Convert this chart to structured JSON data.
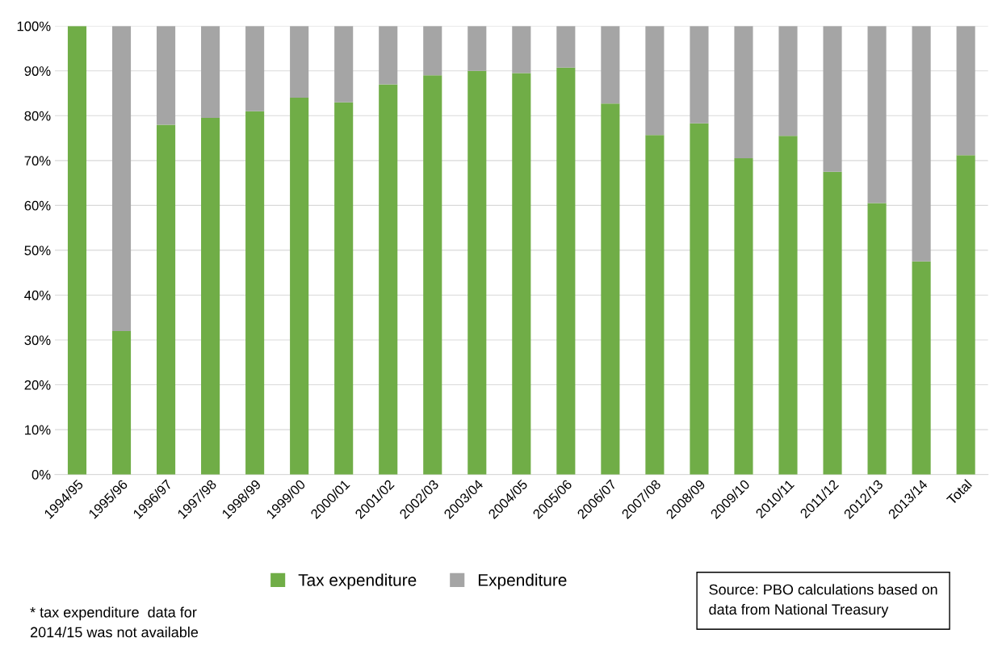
{
  "chart_data": {
    "type": "bar",
    "stacked": true,
    "categories": [
      "1994/95",
      "1995/96",
      "1996/97",
      "1997/98",
      "1998/99",
      "1999/00",
      "2000/01",
      "2001/02",
      "2002/03",
      "2003/04",
      "2004/05",
      "2005/06",
      "2006/07",
      "2007/08",
      "2008/09",
      "2009/10",
      "2010/11",
      "2011/12",
      "2012/13",
      "2013/14",
      "Total"
    ],
    "series": [
      {
        "name": "Tax expenditure",
        "color": "#70ad47",
        "values": [
          100,
          32,
          78,
          79.5,
          81,
          84,
          83,
          87,
          89,
          90,
          89.5,
          90.7,
          82.7,
          75.7,
          78.3,
          70.5,
          75.5,
          67.5,
          60.5,
          47.5,
          71.2
        ]
      },
      {
        "name": "Expenditure",
        "color": "#a5a5a5",
        "values": [
          0,
          68,
          22,
          20.5,
          19,
          16,
          17,
          13,
          11,
          10,
          10.5,
          9.3,
          17.3,
          24.3,
          21.7,
          29.5,
          24.5,
          32.5,
          39.5,
          52.5,
          28.8
        ]
      }
    ],
    "ylim": [
      0,
      100
    ],
    "yticks": [
      {
        "value": 0,
        "label": "0%"
      },
      {
        "value": 10,
        "label": "10%"
      },
      {
        "value": 20,
        "label": "20%"
      },
      {
        "value": 30,
        "label": "30%"
      },
      {
        "value": 40,
        "label": "40%"
      },
      {
        "value": 50,
        "label": "50%"
      },
      {
        "value": 60,
        "label": "60%"
      },
      {
        "value": 70,
        "label": "70%"
      },
      {
        "value": 80,
        "label": "80%"
      },
      {
        "value": 90,
        "label": "90%"
      },
      {
        "value": 100,
        "label": "100%"
      }
    ],
    "grid": "y",
    "legend": "bottom",
    "annotations": [
      "* tax expenditure  data for\n2014/15 was not available",
      "Source: PBO calculations based on\ndata from National Treasury"
    ]
  }
}
